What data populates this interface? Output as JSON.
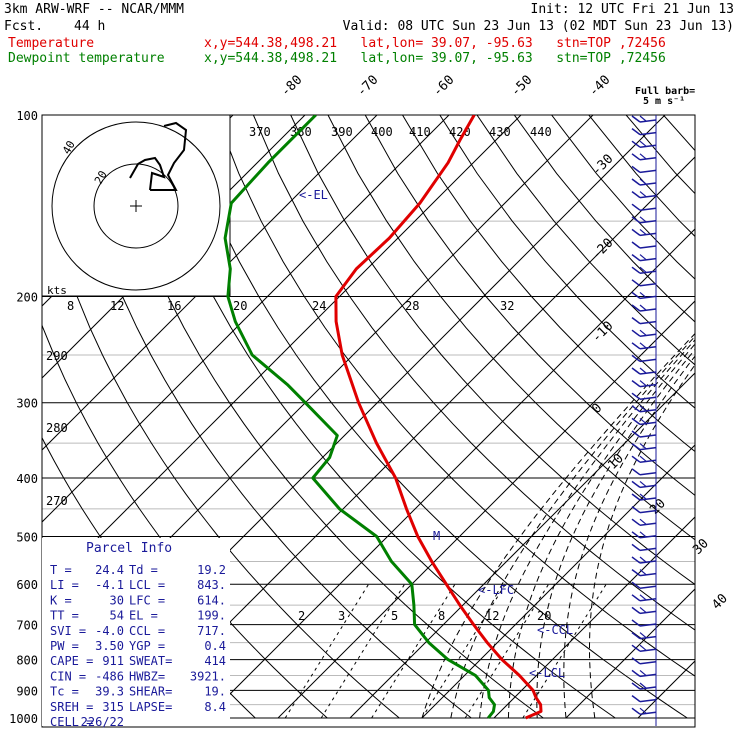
{
  "header": {
    "model": "3km ARW-WRF -- NCAR/MMM",
    "init": "Init: 12 UTC Fri 21 Jun 13",
    "fcst_label": "Fcst.",
    "fcst_value": "44 h",
    "valid": "Valid: 08 UTC Sun 23 Jun 13 (02 MDT Sun 23 Jun 13)",
    "temp_label": "Temperature",
    "dew_label": "Dewpoint temperature",
    "location": "x,y=544.38,498.21   lat,lon= 39.07, -95.63   stn=TOP ,72456"
  },
  "colors": {
    "temperature": "#e00000",
    "dewpoint": "#008000",
    "barbs": "#1a1a9a",
    "grid": "#000000"
  },
  "chart_data": {
    "type": "line",
    "chart_kind": "skew-T log-p sounding",
    "y_scale": "log pressure",
    "ylim": [
      1000,
      100
    ],
    "pressure_labels": [
      "100",
      "200",
      "300",
      "400",
      "500",
      "600",
      "700",
      "800",
      "900",
      "1000"
    ],
    "isotherm_labels": [
      "-80",
      "-70",
      "-60",
      "-50",
      "-40",
      "-30",
      "-20",
      "-10",
      "0",
      "10",
      "20",
      "30",
      "40"
    ],
    "theta_labels": [
      "370",
      "380",
      "390",
      "400",
      "410",
      "420",
      "430",
      "440",
      "290",
      "280",
      "270"
    ],
    "mixing_ratio_labels": [
      "2",
      "3",
      "5",
      "8",
      "12",
      "20"
    ],
    "hodograph": {
      "units": "kts",
      "ring_labels": [
        "20",
        "40"
      ],
      "speed_labels": [
        "8",
        "12",
        "16",
        "20",
        "24",
        "28",
        "32"
      ]
    },
    "markers": [
      "EL",
      "LFC",
      "CCL",
      "LCL",
      "M"
    ],
    "series": [
      {
        "name": "Temperature",
        "points": [
          [
            1000,
            24.4
          ],
          [
            975,
            25.6
          ],
          [
            950,
            24.6
          ],
          [
            925,
            23.0
          ],
          [
            900,
            21.6
          ],
          [
            850,
            17.6
          ],
          [
            800,
            13.0
          ],
          [
            750,
            8.6
          ],
          [
            700,
            4.2
          ],
          [
            650,
            -0.4
          ],
          [
            600,
            -5.2
          ],
          [
            550,
            -10.4
          ],
          [
            500,
            -15.8
          ],
          [
            450,
            -21.2
          ],
          [
            400,
            -27.0
          ],
          [
            350,
            -34.5
          ],
          [
            300,
            -42.6
          ],
          [
            250,
            -51.5
          ],
          [
            220,
            -57.0
          ],
          [
            200,
            -60.5
          ],
          [
            180,
            -61.5
          ],
          [
            160,
            -61.2
          ],
          [
            140,
            -61.8
          ],
          [
            120,
            -63.5
          ],
          [
            110,
            -65.0
          ],
          [
            100,
            -66.5
          ]
        ]
      },
      {
        "name": "Dewpoint temperature",
        "points": [
          [
            1000,
            19.2
          ],
          [
            975,
            19.0
          ],
          [
            950,
            18.2
          ],
          [
            925,
            16.5
          ],
          [
            900,
            15.4
          ],
          [
            850,
            11.5
          ],
          [
            800,
            5.5
          ],
          [
            750,
            0.5
          ],
          [
            700,
            -4.0
          ],
          [
            650,
            -6.8
          ],
          [
            600,
            -10.0
          ],
          [
            550,
            -16.0
          ],
          [
            500,
            -21.5
          ],
          [
            450,
            -30.5
          ],
          [
            400,
            -38.5
          ],
          [
            370,
            -39.0
          ],
          [
            340,
            -41.0
          ],
          [
            300,
            -50.0
          ],
          [
            280,
            -55.0
          ],
          [
            250,
            -64.0
          ],
          [
            220,
            -71.0
          ],
          [
            200,
            -75.5
          ],
          [
            180,
            -79.0
          ],
          [
            160,
            -84.0
          ],
          [
            140,
            -88.0
          ],
          [
            120,
            -88.5
          ],
          [
            100,
            -88.5
          ]
        ]
      }
    ]
  },
  "barbs": {
    "title": "Full barb=",
    "units": "5 m s⁻¹"
  },
  "parcel": {
    "title": "Parcel Info",
    "rows": [
      [
        "T  =",
        "24.4",
        "Td =",
        "19.2"
      ],
      [
        "LI =",
        "-4.1",
        "LCL =",
        "843."
      ],
      [
        "K  =",
        "30",
        "LFC =",
        "614."
      ],
      [
        "TT =",
        "54",
        "EL =",
        "199."
      ],
      [
        "SVI =",
        "-4.0",
        "CCL =",
        "717."
      ],
      [
        "PW =",
        "3.50",
        "YGP =",
        "0.4"
      ],
      [
        "CAPE =",
        "911",
        "SWEAT=",
        "414"
      ],
      [
        "CIN =",
        "-486",
        "HWBZ=",
        "3921."
      ],
      [
        "Tc =",
        "39.3",
        "SHEAR=",
        "19."
      ],
      [
        "SREH =",
        "315",
        "LAPSE=",
        "8.4"
      ],
      [
        "CELL =",
        "226/22",
        "",
        ""
      ]
    ]
  }
}
